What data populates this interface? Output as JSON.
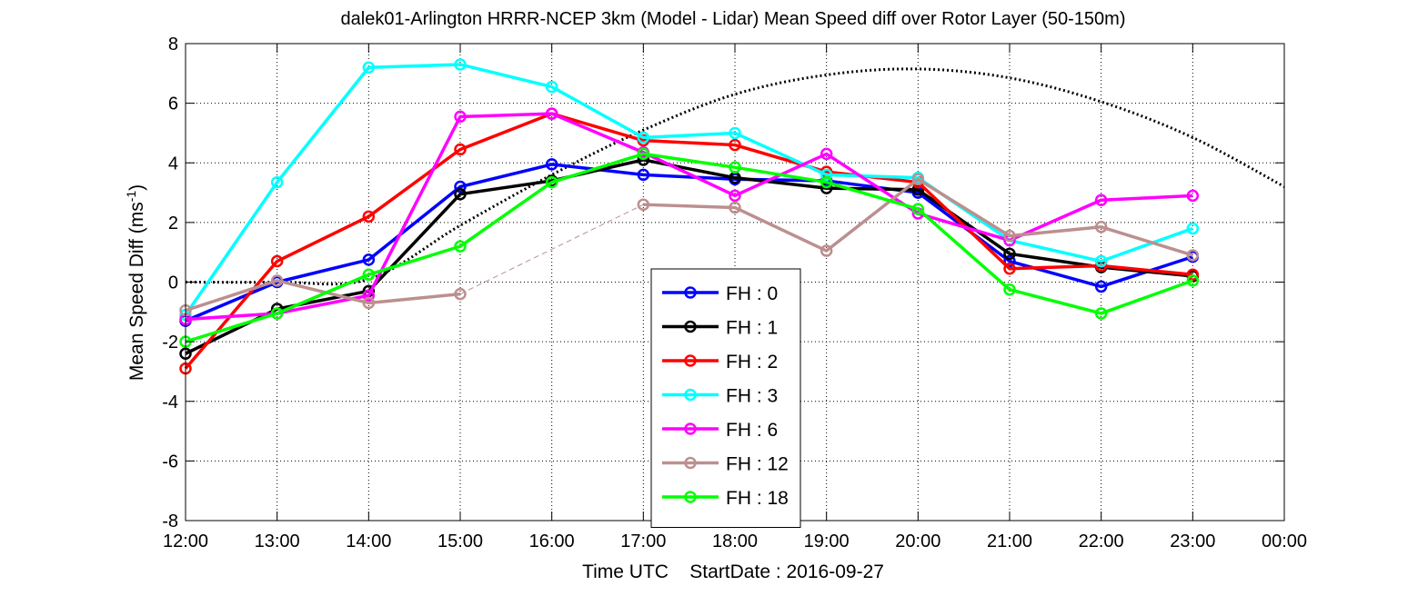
{
  "chart_data": {
    "type": "line",
    "title": "dalek01-Arlington HRRR-NCEP 3km (Model - Lidar) Mean Speed diff over Rotor Layer (50-150m)",
    "xlabel_main": "Time UTC",
    "xlabel_extra": "StartDate : 2016-09-27",
    "ylabel": "Mean Speed Diff (ms⁻¹)",
    "ylim": [
      -8,
      8
    ],
    "yticks": [
      "-8",
      "-6",
      "-4",
      "-2",
      "0",
      "2",
      "4",
      "6",
      "8"
    ],
    "x_tick_labels": [
      "12:00",
      "13:00",
      "14:00",
      "15:00",
      "16:00",
      "17:00",
      "18:00",
      "19:00",
      "20:00",
      "21:00",
      "22:00",
      "23:00",
      "00:00"
    ],
    "grid": true,
    "legend_position": "bottom-center",
    "x": [
      "12:00",
      "13:00",
      "14:00",
      "15:00",
      "16:00",
      "17:00",
      "18:00",
      "19:00",
      "20:00",
      "21:00",
      "22:00",
      "23:00"
    ],
    "series": [
      {
        "name": "FH : 0",
        "color": "#0000ff",
        "values": [
          -1.3,
          0.0,
          0.75,
          3.2,
          3.95,
          3.6,
          3.45,
          3.4,
          3.0,
          0.7,
          -0.15,
          0.85
        ]
      },
      {
        "name": "FH : 1",
        "color": "#000000",
        "values": [
          -2.4,
          -0.9,
          -0.3,
          2.95,
          3.4,
          4.1,
          3.5,
          3.15,
          3.1,
          0.95,
          0.5,
          0.2
        ]
      },
      {
        "name": "FH : 2",
        "color": "#ff0000",
        "values": [
          -2.9,
          0.7,
          2.2,
          4.45,
          5.65,
          4.75,
          4.6,
          3.7,
          3.35,
          0.45,
          0.55,
          0.25
        ]
      },
      {
        "name": "FH : 3",
        "color": "#00ffff",
        "values": [
          -1.1,
          3.35,
          7.2,
          7.3,
          6.55,
          4.85,
          5.0,
          3.6,
          3.5,
          1.4,
          0.7,
          1.8
        ]
      },
      {
        "name": "FH : 6",
        "color": "#ff00ff",
        "values": [
          -1.25,
          -1.05,
          -0.45,
          5.55,
          5.65,
          4.35,
          2.9,
          4.3,
          2.3,
          1.4,
          2.75,
          2.9
        ]
      },
      {
        "name": "FH : 12",
        "color": "#bc8f8f",
        "values": [
          -0.95,
          0.05,
          -0.7,
          -0.4,
          null,
          2.6,
          2.5,
          1.05,
          3.45,
          1.55,
          1.85,
          0.9
        ]
      },
      {
        "name": "FH : 18",
        "color": "#00ff00",
        "values": [
          -2.0,
          -1.05,
          0.25,
          1.2,
          3.35,
          4.3,
          3.85,
          3.35,
          2.45,
          -0.25,
          -1.05,
          0.05
        ]
      }
    ],
    "gap_connector": {
      "series": "FH : 12",
      "from": "15:00",
      "to": "17:00",
      "style": "thin dashed"
    },
    "reference_curve": {
      "style": "dotted black",
      "x": [
        "12:00",
        "13:00",
        "14:00",
        "15:00",
        "16:00",
        "17:00",
        "18:00",
        "19:00",
        "20:00",
        "21:00",
        "22:00",
        "23:00",
        "00:00"
      ],
      "values": [
        0.0,
        0.0,
        0.1,
        1.9,
        3.6,
        5.1,
        6.3,
        6.95,
        7.15,
        6.85,
        6.05,
        4.85,
        3.2
      ]
    }
  }
}
